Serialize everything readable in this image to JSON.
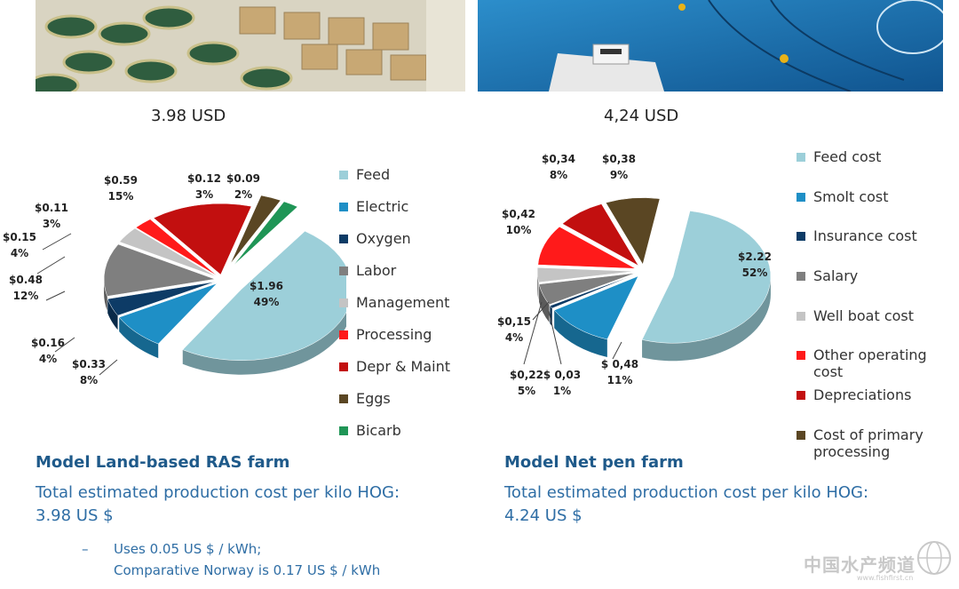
{
  "left_panel": {
    "price_label": "3.98 USD",
    "model_title": "Model Land-based RAS farm",
    "cost_text": "Total estimated production cost per kilo HOG:",
    "cost_value": "3.98 US $",
    "note_dash": "–",
    "note_line1": "Uses 0.05 US $ / kWh;",
    "note_line2": "Comparative Norway is 0.17 US $ / kWh"
  },
  "right_panel": {
    "price_label": "4,24 USD",
    "model_title": "Model Net pen farm",
    "cost_text": "Total estimated production cost per kilo HOG:",
    "cost_value": "4.24 US $"
  },
  "watermark": {
    "text": "中国水产频道",
    "url": "www.fishfirst.cn"
  },
  "chart_data": [
    {
      "type": "pie",
      "title": "3.98 USD",
      "categories": [
        "Feed",
        "Electric",
        "Oxygen",
        "Labor",
        "Management",
        "Processing",
        "Depr & Maint",
        "Eggs",
        "Bicarb"
      ],
      "values": [
        1.96,
        0.33,
        0.16,
        0.48,
        0.15,
        0.11,
        0.59,
        0.12,
        0.09
      ],
      "percents": [
        49,
        8,
        4,
        12,
        4,
        3,
        15,
        3,
        2
      ],
      "value_labels": [
        "$1.96",
        "$0.33",
        "$0.16",
        "$0.48",
        "$0.15",
        "$0.11",
        "$0.59",
        "$0.12",
        "$0.09"
      ],
      "percent_labels": [
        "49%",
        "8%",
        "4%",
        "12%",
        "4%",
        "3%",
        "15%",
        "3%",
        "2%"
      ],
      "colors": [
        "#9ccfd9",
        "#1e8fc6",
        "#0d3b66",
        "#7f7f7f",
        "#c4c4c4",
        "#ff1a1a",
        "#c20f0f",
        "#5a4623",
        "#1f9556"
      ],
      "legend_position": "right"
    },
    {
      "type": "pie",
      "title": "4,24 USD",
      "categories": [
        "Feed cost",
        "Smolt cost",
        "Insurance cost",
        "Salary",
        "Well boat cost",
        "Other operating cost",
        "Depreciations",
        "Cost of primary processing"
      ],
      "values": [
        2.22,
        0.48,
        0.03,
        0.22,
        0.15,
        0.42,
        0.34,
        0.38
      ],
      "percents": [
        52,
        11,
        1,
        5,
        4,
        10,
        8,
        9
      ],
      "value_labels": [
        "$2.22",
        "$ 0,48",
        "$ 0,03",
        "$0,22",
        "$0,15",
        "$0,42",
        "$0,34",
        "$0,38"
      ],
      "percent_labels": [
        "52%",
        "11%",
        "1%",
        "5%",
        "4%",
        "10%",
        "8%",
        "9%"
      ],
      "colors": [
        "#9ccfd9",
        "#1e8fc6",
        "#0d3b66",
        "#7f7f7f",
        "#c4c4c4",
        "#ff1a1a",
        "#c20f0f",
        "#5a4623"
      ],
      "legend_position": "right"
    }
  ]
}
